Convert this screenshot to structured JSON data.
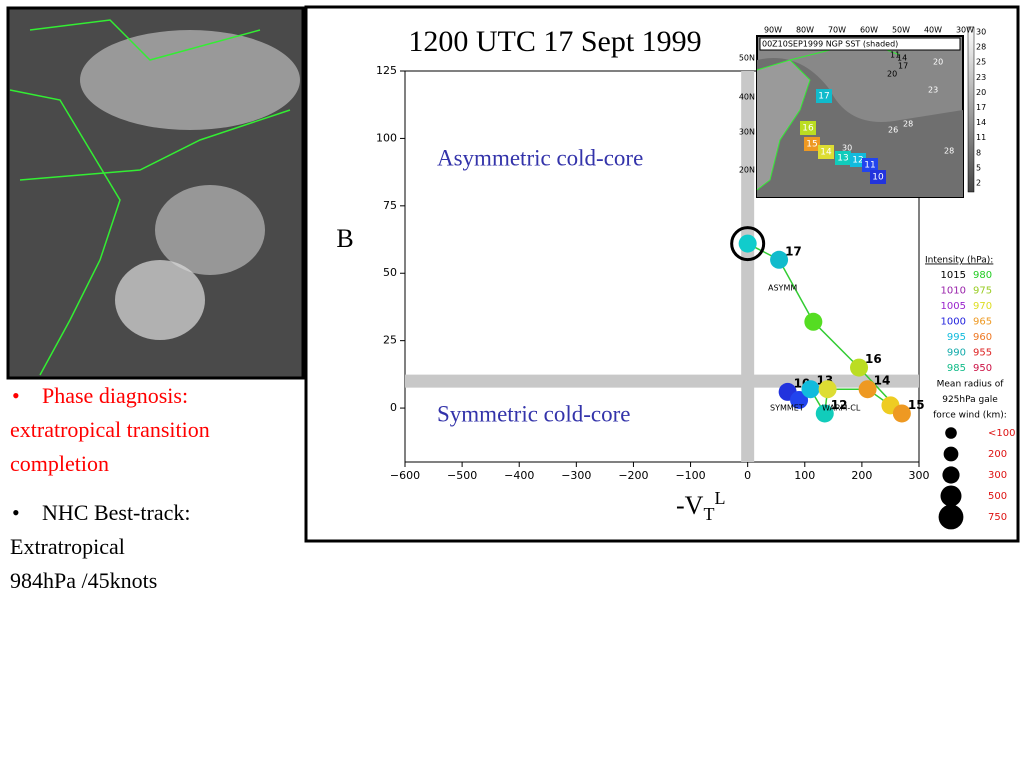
{
  "bullets": [
    {
      "marker": "•",
      "lines": [
        "Phase diagnosis:",
        "extratropical transition",
        "completion"
      ],
      "color": "#ff0000"
    },
    {
      "marker": "•",
      "lines": [
        "NHC Best-track:",
        "Extratropical",
        "984hPa /45knots"
      ],
      "color": "#000000"
    }
  ],
  "chart_data": {
    "type": "line",
    "title": "1200 UTC 17 Sept 1999",
    "y_label": "B",
    "x_label": {
      "main": "-V",
      "sub": "T",
      "sup": "L"
    },
    "annotations": [
      "Asymmetric cold-core",
      "Symmetric cold-core"
    ],
    "region_labels": [
      "ASYMM",
      "SYMMET",
      "WARM-CL"
    ],
    "x": [
      70,
      90,
      110,
      135,
      140,
      210,
      250,
      270,
      195,
      115,
      55,
      0
    ],
    "series": [
      {
        "name": "track",
        "color": "#33cc33",
        "values": [
          6,
          3,
          7,
          -2,
          7,
          7,
          1,
          -2,
          15,
          32,
          55,
          61
        ]
      }
    ],
    "point_colors": [
      "#2233dd",
      "#2244ee",
      "#11bbdd",
      "#11ccbb",
      "#dddd33",
      "#ee9922",
      "#eecc22",
      "#ee9922",
      "#bbdd22",
      "#55dd22",
      "#11bbcc",
      "#11cccc"
    ],
    "point_labels": [
      "10",
      null,
      "13",
      "12",
      null,
      "14",
      null,
      "15",
      "16",
      null,
      "17",
      null
    ],
    "xlim": [
      -600,
      300
    ],
    "xticks": [
      {
        "value": -600,
        "label": "−600"
      },
      {
        "value": -500,
        "label": "−500"
      },
      {
        "value": -400,
        "label": "−400"
      },
      {
        "value": -300,
        "label": "−300"
      },
      {
        "value": -200,
        "label": "−200"
      },
      {
        "value": -100,
        "label": "−100"
      },
      0,
      100,
      200,
      300
    ],
    "ylim": [
      -20,
      125
    ],
    "yticks": [
      0,
      25,
      50,
      75,
      100,
      125
    ],
    "crosshair": {
      "x": 0,
      "y": 10
    },
    "legend": {
      "intensity_title": "Intensity (hPa):",
      "intensity": [
        {
          "a": "1015",
          "a_color": "#000000",
          "b": "980",
          "b_color": "#22cc22"
        },
        {
          "a": "1010",
          "a_color": "#9922aa",
          "b": "975",
          "b_color": "#99cc22"
        },
        {
          "a": "1005",
          "a_color": "#9922cc",
          "b": "970",
          "b_color": "#dddd22"
        },
        {
          "a": "1000",
          "a_color": "#2222dd",
          "b": "965",
          "b_color": "#ee9922"
        },
        {
          "a": "995",
          "a_color": "#11bbdd",
          "b": "960",
          "b_color": "#ee7722"
        },
        {
          "a": "990",
          "a_color": "#11aaaa",
          "b": "955",
          "b_color": "#dd2222"
        },
        {
          "a": "985",
          "a_color": "#11bb88",
          "b": "950",
          "b_color": "#cc1144"
        }
      ],
      "radius_title": [
        "Mean radius of",
        "925hPa gale",
        "force wind (km):"
      ],
      "radius": [
        {
          "label": "<100",
          "size": 100
        },
        {
          "label": "200",
          "size": 200
        },
        {
          "label": "300",
          "size": 300
        },
        {
          "label": "500",
          "size": 500
        },
        {
          "label": "750",
          "size": 750
        }
      ]
    }
  },
  "inset": {
    "header": "00Z10SEP1999 NGP SST (shaded)",
    "longitudes": [
      "90W",
      "80W",
      "70W",
      "60W",
      "50W",
      "40W",
      "30W"
    ],
    "latitudes": [
      "50N",
      "40N",
      "30N",
      "20N"
    ],
    "scale": [
      "30",
      "28",
      "25",
      "23",
      "20",
      "17",
      "14",
      "11",
      "8",
      "5",
      "2"
    ],
    "track_labels": [
      "17",
      "16",
      "15",
      "14",
      "13",
      "12",
      "11",
      "10"
    ],
    "contours": [
      "11",
      "14",
      "17",
      "20",
      "20",
      "23",
      "26",
      "28",
      "30",
      "28"
    ]
  }
}
